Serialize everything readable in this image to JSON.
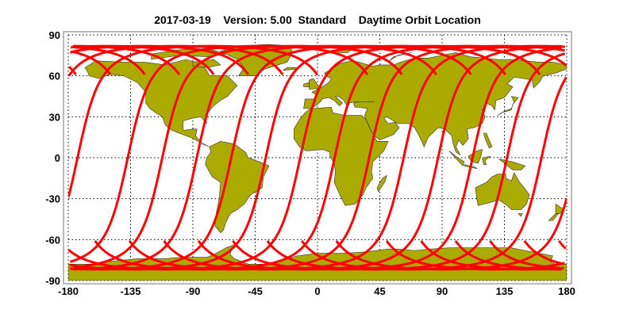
{
  "title": "2017-03-19    Version: 5.00  Standard    Daytime Orbit Location",
  "map": {
    "projection": "equirectangular",
    "lon_range": [
      -180,
      180
    ],
    "lat_range": [
      -90,
      90
    ],
    "lon_ticks": [
      "-180",
      "-135",
      "-90",
      "-45",
      "0",
      "45",
      "90",
      "135",
      "180"
    ],
    "lat_ticks": [
      "90",
      "60",
      "30",
      "0",
      "-30",
      "-60",
      "-90"
    ],
    "grid": "dotted",
    "land_color": "#aaaa00",
    "track_color": "#ff0000",
    "orbit_tracks": {
      "direction": "descending (daytime)",
      "equator_crossing_lon": [
        -137,
        -112.1,
        -87.2,
        -62.3,
        -37.4,
        -12.5,
        12.4,
        37.3,
        62.2,
        87.1,
        112,
        136.9,
        161.8,
        -173.3
      ]
    }
  }
}
